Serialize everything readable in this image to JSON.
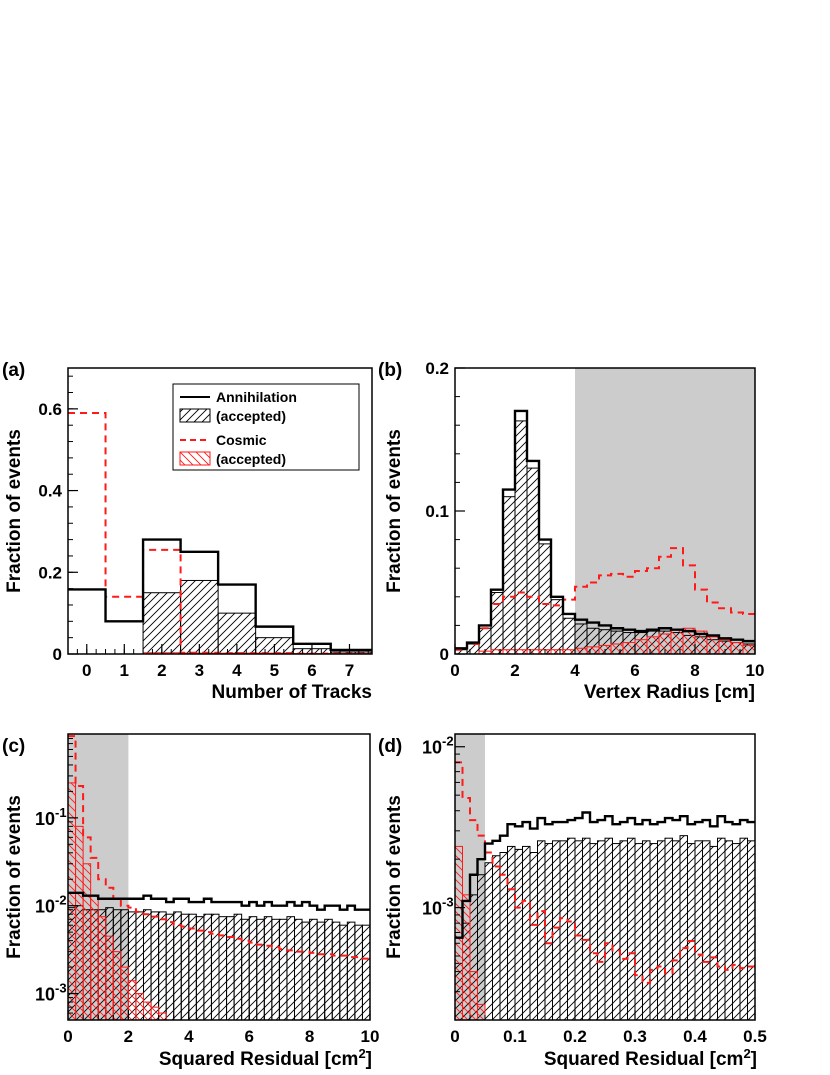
{
  "chart_data": [
    {
      "id": "a",
      "panel_label": "(a)",
      "type": "bar",
      "scale": "linear",
      "xlabel": "Number of Tracks",
      "ylabel": "Fraction of events",
      "xlim": [
        -0.5,
        7.6
      ],
      "ylim": [
        0,
        0.7
      ],
      "xticks": [
        "0",
        "1",
        "2",
        "3",
        "4",
        "5",
        "6",
        "7"
      ],
      "yticks": [
        "0",
        "0.2",
        "0.4",
        "0.6"
      ],
      "legend": {
        "position": "top-right",
        "entries": [
          {
            "label": "Annihilation",
            "style": "solid-black"
          },
          {
            "label": "(accepted)",
            "style": "hatch-black"
          },
          {
            "label": "Cosmic",
            "style": "dashed-red"
          },
          {
            "label": "(accepted)",
            "style": "hatch-red"
          }
        ]
      },
      "bin_edges": [
        -0.5,
        0.5,
        1.5,
        2.5,
        3.5,
        4.5,
        5.5,
        6.5,
        7.6
      ],
      "series": [
        {
          "name": "Annihilation",
          "style": "solid-black",
          "values": [
            0.158,
            0.08,
            0.28,
            0.25,
            0.17,
            0.067,
            0.025,
            0.01
          ]
        },
        {
          "name": "Annihilation (accepted)",
          "style": "hatch-black",
          "values": [
            0,
            0,
            0.15,
            0.18,
            0.1,
            0.04,
            0.013,
            0.005
          ]
        },
        {
          "name": "Cosmic",
          "style": "dashed-red",
          "values": [
            0.59,
            0.14,
            0.255,
            0.003,
            0.002,
            0.002,
            0.001,
            0.001
          ]
        },
        {
          "name": "Cosmic (accepted)",
          "style": "hatch-red",
          "values": [
            0,
            0,
            0.003,
            0.002,
            0.002,
            0.002,
            0.001,
            0.001
          ]
        }
      ]
    },
    {
      "id": "b",
      "panel_label": "(b)",
      "type": "bar",
      "scale": "linear",
      "xlabel": "Vertex Radius [cm]",
      "ylabel": "Fraction of events",
      "xlim": [
        0,
        10
      ],
      "ylim": [
        0,
        0.2
      ],
      "xticks": [
        "0",
        "2",
        "4",
        "6",
        "8",
        "10"
      ],
      "yticks": [
        "0",
        "0.1",
        "0.2"
      ],
      "shaded_region": [
        4,
        10
      ],
      "bin_edges": [
        0,
        0.4,
        0.8,
        1.2,
        1.6,
        2.0,
        2.4,
        2.8,
        3.2,
        3.6,
        4.0,
        4.4,
        4.8,
        5.2,
        5.6,
        6.0,
        6.4,
        6.8,
        7.2,
        7.6,
        8.0,
        8.4,
        8.8,
        9.2,
        9.6,
        10.0
      ],
      "series": [
        {
          "name": "Annihilation",
          "style": "solid-black",
          "values": [
            0.004,
            0.008,
            0.02,
            0.045,
            0.115,
            0.17,
            0.135,
            0.08,
            0.04,
            0.028,
            0.024,
            0.022,
            0.02,
            0.018,
            0.017,
            0.016,
            0.017,
            0.018,
            0.017,
            0.016,
            0.014,
            0.013,
            0.011,
            0.01,
            0.009
          ]
        },
        {
          "name": "Annihilation (accepted)",
          "style": "hatch-black",
          "values": [
            0.003,
            0.007,
            0.018,
            0.043,
            0.11,
            0.163,
            0.13,
            0.077,
            0.038,
            0.025,
            0.021,
            0.018,
            0.017,
            0.016,
            0.015,
            0.015,
            0.016,
            0.016,
            0.015,
            0.013,
            0.012,
            0.01,
            0.009,
            0.008,
            0.007
          ]
        },
        {
          "name": "Cosmic",
          "style": "dashed-red",
          "values": [
            0.003,
            0.007,
            0.018,
            0.035,
            0.04,
            0.043,
            0.04,
            0.035,
            0.034,
            0.038,
            0.047,
            0.05,
            0.055,
            0.056,
            0.054,
            0.058,
            0.06,
            0.068,
            0.074,
            0.062,
            0.045,
            0.036,
            0.032,
            0.029,
            0.028
          ]
        },
        {
          "name": "Cosmic (accepted)",
          "style": "hatch-red",
          "values": [
            0,
            0,
            0.002,
            0.003,
            0.003,
            0.003,
            0.003,
            0.003,
            0.003,
            0.003,
            0.004,
            0.005,
            0.006,
            0.007,
            0.008,
            0.01,
            0.012,
            0.014,
            0.017,
            0.018,
            0.016,
            0.012,
            0.01,
            0.008,
            0.006
          ]
        }
      ]
    },
    {
      "id": "c",
      "panel_label": "(c)",
      "type": "bar",
      "scale": "log",
      "xlabel": "Squared Residual [cm",
      "xlabel_sup": "2",
      "xlabel_end": "]",
      "ylabel": "Fraction of events",
      "xlim": [
        0,
        10
      ],
      "ylim": [
        0.0005,
        0.9
      ],
      "xticks": [
        "0",
        "2",
        "4",
        "6",
        "8",
        "10"
      ],
      "yticks": [
        {
          "base": "10",
          "exp": "-3",
          "value": 0.001
        },
        {
          "base": "10",
          "exp": "-2",
          "value": 0.01
        },
        {
          "base": "10",
          "exp": "-1",
          "value": 0.1
        }
      ],
      "shaded_region": [
        0,
        2
      ],
      "bin_edges": [
        0,
        0.25,
        0.5,
        0.75,
        1.0,
        1.25,
        1.5,
        1.75,
        2.0,
        2.25,
        2.5,
        2.75,
        3.0,
        3.25,
        3.5,
        3.75,
        4.0,
        4.25,
        4.5,
        4.75,
        5.0,
        5.25,
        5.5,
        5.75,
        6.0,
        6.25,
        6.5,
        6.75,
        7.0,
        7.25,
        7.5,
        7.75,
        8.0,
        8.25,
        8.5,
        8.75,
        9.0,
        9.25,
        9.5,
        9.75,
        10.0
      ],
      "series": [
        {
          "name": "Annihilation",
          "style": "solid-black",
          "values": [
            0.014,
            0.014,
            0.013,
            0.013,
            0.012,
            0.012,
            0.012,
            0.012,
            0.012,
            0.012,
            0.013,
            0.012,
            0.012,
            0.011,
            0.012,
            0.012,
            0.011,
            0.011,
            0.012,
            0.011,
            0.011,
            0.011,
            0.011,
            0.01,
            0.011,
            0.01,
            0.011,
            0.01,
            0.01,
            0.011,
            0.01,
            0.011,
            0.01,
            0.009,
            0.01,
            0.01,
            0.009,
            0.01,
            0.009,
            0.009
          ]
        },
        {
          "name": "Annihilation (accepted)",
          "style": "hatch-black",
          "values": [
            0.0095,
            0.01,
            0.009,
            0.009,
            0.009,
            0.0095,
            0.009,
            0.009,
            0.0085,
            0.0085,
            0.009,
            0.0085,
            0.0085,
            0.008,
            0.0085,
            0.008,
            0.008,
            0.0075,
            0.008,
            0.008,
            0.0075,
            0.0075,
            0.008,
            0.007,
            0.0075,
            0.007,
            0.0075,
            0.007,
            0.007,
            0.0075,
            0.007,
            0.0065,
            0.007,
            0.0065,
            0.007,
            0.0065,
            0.006,
            0.0065,
            0.006,
            0.006
          ]
        },
        {
          "name": "Cosmic",
          "style": "dashed-red",
          "values": [
            0.85,
            0.23,
            0.06,
            0.035,
            0.02,
            0.016,
            0.012,
            0.01,
            0.0095,
            0.0085,
            0.008,
            0.0075,
            0.007,
            0.0065,
            0.006,
            0.0058,
            0.0055,
            0.0052,
            0.005,
            0.0048,
            0.0046,
            0.0044,
            0.0042,
            0.004,
            0.0038,
            0.0036,
            0.0035,
            0.0034,
            0.0032,
            0.0031,
            0.003,
            0.003,
            0.0029,
            0.0028,
            0.0028,
            0.0027,
            0.0027,
            0.0026,
            0.0026,
            0.0025
          ]
        },
        {
          "name": "Cosmic (accepted)",
          "style": "hatch-red",
          "values": [
            0.25,
            0.08,
            0.03,
            0.013,
            0.0075,
            0.0045,
            0.003,
            0.002,
            0.0014,
            0.001,
            0.0008,
            0.0007,
            0.0006,
            0.0005,
            0.0005,
            0.0005,
            0.0005,
            0.0005,
            0.0005,
            0.0005,
            0.0005,
            0.0005,
            0.0005,
            0.0005,
            0.0005,
            0.0005,
            0.0005,
            0.0005,
            0.0005,
            0.0005,
            0.0005,
            0.0005,
            0.0005,
            0.0005,
            0.0005,
            0.0005,
            0.0005,
            0.0005,
            0.0005,
            0.0005
          ]
        }
      ]
    },
    {
      "id": "d",
      "panel_label": "(d)",
      "type": "bar",
      "scale": "log",
      "xlabel": "Squared Residual [cm",
      "xlabel_sup": "2",
      "xlabel_end": "]",
      "ylabel": "Fraction of events",
      "xlim": [
        0,
        0.5
      ],
      "ylim": [
        0.0002,
        0.012
      ],
      "xticks": [
        "0",
        "0.1",
        "0.2",
        "0.3",
        "0.4",
        "0.5"
      ],
      "yticks": [
        {
          "base": "10",
          "exp": "-3",
          "value": 0.001
        },
        {
          "base": "10",
          "exp": "-2",
          "value": 0.01
        }
      ],
      "shaded_region": [
        0,
        0.05
      ],
      "bin_edges": [
        0,
        0.0125,
        0.025,
        0.0375,
        0.05,
        0.0625,
        0.075,
        0.0875,
        0.1,
        0.1125,
        0.125,
        0.1375,
        0.15,
        0.1625,
        0.175,
        0.1875,
        0.2,
        0.2125,
        0.225,
        0.2375,
        0.25,
        0.2625,
        0.275,
        0.2875,
        0.3,
        0.3125,
        0.325,
        0.3375,
        0.35,
        0.3625,
        0.375,
        0.3875,
        0.4,
        0.4125,
        0.425,
        0.4375,
        0.45,
        0.4625,
        0.475,
        0.4875,
        0.5
      ],
      "series": [
        {
          "name": "Annihilation",
          "style": "solid-black",
          "values": [
            0.00065,
            0.0011,
            0.0016,
            0.002,
            0.0025,
            0.0026,
            0.0028,
            0.0033,
            0.0032,
            0.0034,
            0.0031,
            0.0036,
            0.0033,
            0.0034,
            0.0034,
            0.0035,
            0.0036,
            0.0039,
            0.0034,
            0.0035,
            0.0037,
            0.0033,
            0.0034,
            0.0036,
            0.0033,
            0.0035,
            0.0033,
            0.0034,
            0.0036,
            0.0035,
            0.0037,
            0.0033,
            0.0034,
            0.0035,
            0.0032,
            0.0037,
            0.0034,
            0.0033,
            0.0035,
            0.0034
          ]
        },
        {
          "name": "Annihilation (accepted)",
          "style": "hatch-black",
          "values": [
            0.00045,
            0.0008,
            0.0012,
            0.0016,
            0.0019,
            0.0021,
            0.0022,
            0.0024,
            0.0023,
            0.0024,
            0.0022,
            0.0026,
            0.0025,
            0.0026,
            0.0026,
            0.0027,
            0.0026,
            0.0027,
            0.0025,
            0.0026,
            0.0027,
            0.0025,
            0.0026,
            0.0027,
            0.0025,
            0.0026,
            0.0025,
            0.0026,
            0.0027,
            0.0026,
            0.0028,
            0.0025,
            0.0026,
            0.0026,
            0.0024,
            0.0027,
            0.0026,
            0.0025,
            0.0027,
            0.0026
          ]
        },
        {
          "name": "Cosmic",
          "style": "dashed-red",
          "values": [
            0.008,
            0.0048,
            0.0035,
            0.0028,
            0.0022,
            0.0018,
            0.0016,
            0.0013,
            0.001,
            0.0011,
            0.00078,
            0.00095,
            0.0006,
            0.00075,
            0.00086,
            0.00082,
            0.00067,
            0.00063,
            0.00052,
            0.00046,
            0.0006,
            0.00054,
            0.00048,
            0.00052,
            0.00038,
            0.00034,
            0.00041,
            0.00043,
            0.00039,
            0.00047,
            0.00056,
            0.00062,
            0.00051,
            0.00046,
            0.00049,
            0.00043,
            0.00041,
            0.00044,
            0.00042,
            0.00043
          ]
        },
        {
          "name": "Cosmic (accepted)",
          "style": "hatch-red",
          "values": [
            0.0024,
            0.0012,
            0.0004,
            0.00025,
            0.0002,
            0.0002,
            0.0002,
            0.0002,
            0.0002,
            0.0002,
            0.0002,
            0.0002,
            0.0002,
            0.0002,
            0.0002,
            0.0002,
            0.0002,
            0.0002,
            0.0002,
            0.0002,
            0.0002,
            0.0002,
            0.0002,
            0.0002,
            0.0002,
            0.0002,
            0.0002,
            0.0002,
            0.0002,
            0.0002,
            0.0002,
            0.0002,
            0.0002,
            0.0002,
            0.0002,
            0.0002,
            0.0002,
            0.0002,
            0.0002,
            0.0002
          ]
        }
      ]
    }
  ]
}
